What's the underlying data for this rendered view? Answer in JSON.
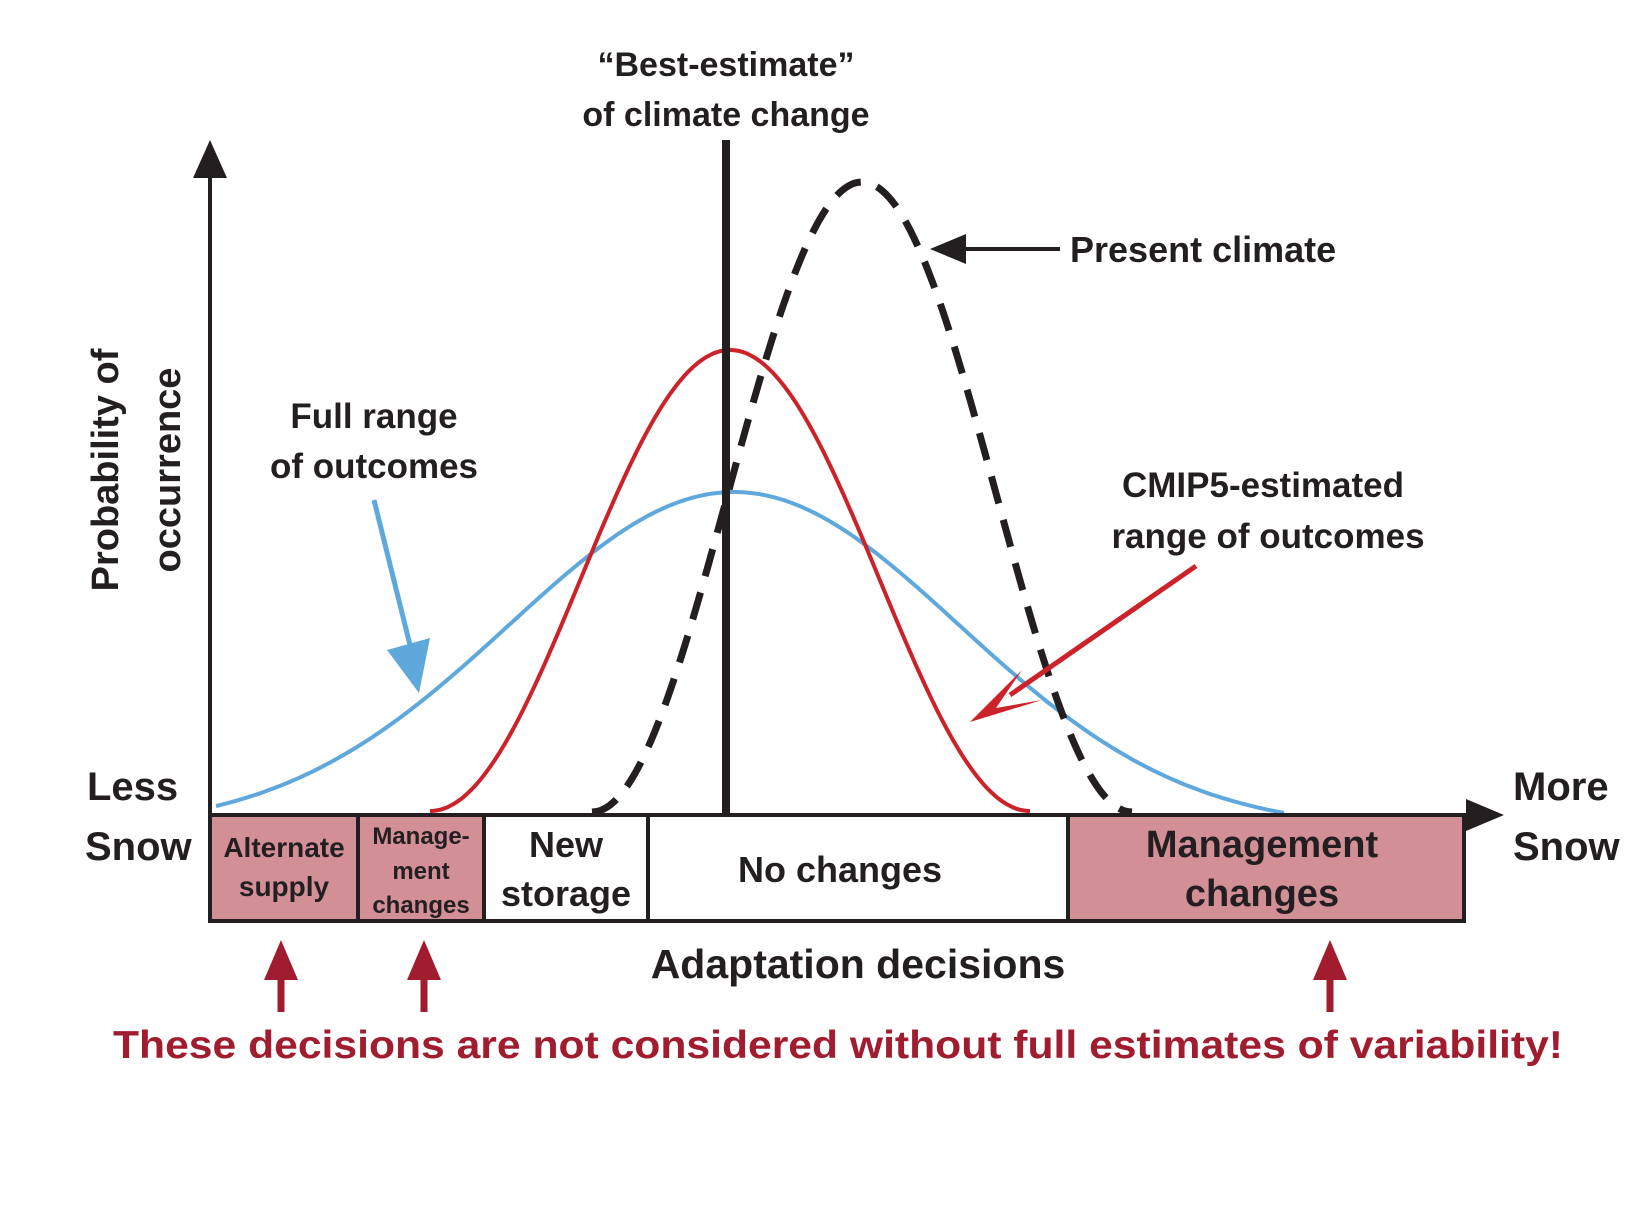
{
  "best_estimate": {
    "line1": "“Best-estimate”",
    "line2": "of climate change"
  },
  "y_axis_label": {
    "line1": "Probability of",
    "line2": "occurrence"
  },
  "x_axis": {
    "left_line1": "Less",
    "left_line2": "Snow",
    "right_line1": "More",
    "right_line2": "Snow"
  },
  "labels": {
    "present_climate": "Present climate",
    "full_range_line1": "Full range",
    "full_range_line2": "of outcomes",
    "cmip5_line1": "CMIP5-estimated",
    "cmip5_line2": "range of outcomes"
  },
  "decisions": {
    "alternate_supply_line1": "Alternate",
    "alternate_supply_line2": "supply",
    "mgmt_small_line1": "Manage-",
    "mgmt_small_line2": "ment",
    "mgmt_small_line3": "changes",
    "new_storage_line1": "New",
    "new_storage_line2": "storage",
    "no_changes": "No changes",
    "mgmt_large_line1": "Management",
    "mgmt_large_line2": "changes"
  },
  "adaptation_label": "Adaptation decisions",
  "warning": "These decisions are not considered without full estimates of variability!",
  "colors": {
    "full_range": "#5fa8dc",
    "cmip5": "#cc2229",
    "present_climate": "#231f20",
    "highlight_box": "#d38f96",
    "warning": "#a01c2e"
  }
}
